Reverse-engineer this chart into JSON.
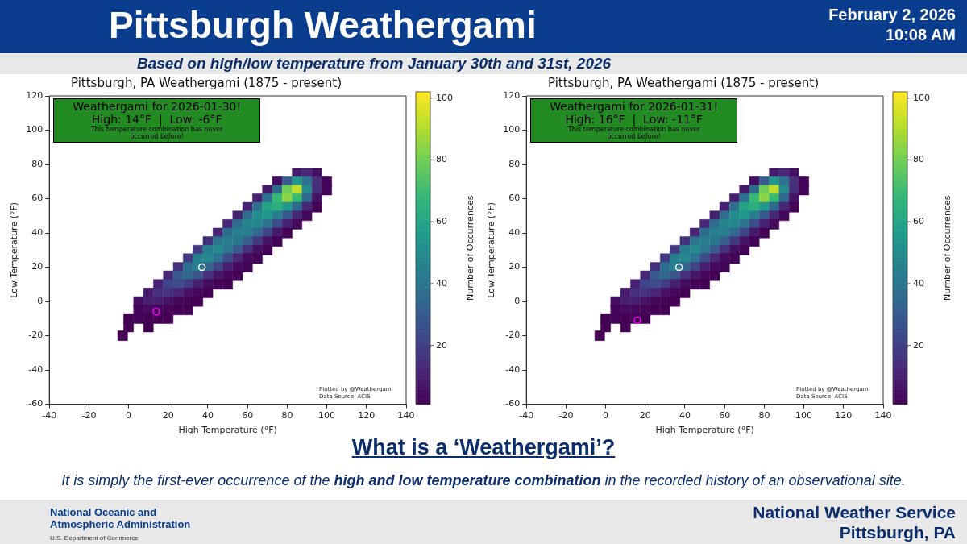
{
  "chart_data": [
    {
      "type": "other",
      "title": "Pittsburgh Weathergami",
      "subtitle": "Based on high/low temperature from January 30th and 31st, 2026",
      "annotations": [
        "February 2, 2026",
        "10:08 AM"
      ]
    },
    {
      "type": "scatter",
      "title": "Pittsburgh, PA Weathergami (1875 - present)",
      "xlabel": "High Temperature (°F)",
      "ylabel": "Low Temperature (°F)",
      "clabel": "Number of Occurrences",
      "xlim": [
        -40,
        140
      ],
      "xticks": [
        -40,
        -20,
        0,
        20,
        40,
        60,
        80,
        100,
        120,
        140
      ],
      "ylim": [
        -60,
        120
      ],
      "yticks": [
        -60,
        -40,
        -20,
        0,
        20,
        40,
        60,
        80,
        100,
        120
      ],
      "clim": [
        1,
        102
      ],
      "cticks": [
        20,
        40,
        60,
        80,
        100
      ],
      "legend": false,
      "annotations": [
        "Weathergami for 2026-01-30!",
        "High: 14°F  |  Low: -6°F",
        "This temperature combination has never occurred before!",
        "Plotted by @Weathergami",
        "Data Source: ACIS"
      ],
      "series": [
        {
          "marker": "square",
          "x": [
            85,
            90,
            95,
            75,
            80,
            85,
            90,
            95,
            100,
            70,
            75,
            80,
            85,
            90,
            95,
            100,
            65,
            70,
            75,
            80,
            85,
            90,
            95,
            60,
            65,
            70,
            75,
            80,
            85,
            90,
            95,
            55,
            60,
            65,
            70,
            75,
            80,
            85,
            90,
            50,
            55,
            60,
            65,
            70,
            75,
            80,
            85,
            45,
            50,
            55,
            60,
            65,
            70,
            75,
            80,
            40,
            45,
            50,
            55,
            60,
            65,
            70,
            75,
            35,
            40,
            45,
            50,
            55,
            60,
            65,
            70,
            30,
            35,
            40,
            45,
            50,
            55,
            60,
            65,
            25,
            30,
            35,
            40,
            45,
            50,
            55,
            60,
            20,
            25,
            30,
            35,
            40,
            45,
            50,
            55,
            15,
            20,
            25,
            30,
            35,
            40,
            45,
            50,
            10,
            15,
            20,
            25,
            30,
            35,
            40,
            5,
            10,
            15,
            20,
            25,
            30,
            35,
            5,
            10,
            15,
            20,
            25,
            30,
            0,
            5,
            10,
            15,
            20,
            0,
            10,
            -3
          ],
          "values": [
            75,
            75,
            75,
            70,
            70,
            70,
            70,
            70,
            70,
            65,
            65,
            65,
            65,
            65,
            65,
            65,
            60,
            60,
            60,
            60,
            60,
            60,
            60,
            55,
            55,
            55,
            55,
            55,
            55,
            55,
            55,
            50,
            50,
            50,
            50,
            50,
            50,
            50,
            50,
            45,
            45,
            45,
            45,
            45,
            45,
            45,
            45,
            40,
            40,
            40,
            40,
            40,
            40,
            40,
            40,
            35,
            35,
            35,
            35,
            35,
            35,
            35,
            35,
            30,
            30,
            30,
            30,
            30,
            30,
            30,
            30,
            25,
            25,
            25,
            25,
            25,
            25,
            25,
            25,
            20,
            20,
            20,
            20,
            20,
            20,
            20,
            20,
            15,
            15,
            15,
            15,
            15,
            15,
            15,
            15,
            10,
            10,
            10,
            10,
            10,
            10,
            10,
            10,
            5,
            5,
            5,
            5,
            5,
            5,
            5,
            0,
            0,
            0,
            0,
            0,
            0,
            0,
            -5,
            -5,
            -5,
            -5,
            -5,
            -5,
            -10,
            -10,
            -10,
            -10,
            -10,
            -15,
            -15,
            -20
          ],
          "cvalues": [
            8,
            12,
            5,
            5,
            30,
            55,
            40,
            15,
            2,
            8,
            35,
            80,
            92,
            50,
            15,
            2,
            10,
            40,
            70,
            85,
            70,
            35,
            6,
            10,
            40,
            60,
            65,
            55,
            35,
            12,
            2,
            10,
            38,
            52,
            55,
            45,
            30,
            12,
            3,
            12,
            38,
            48,
            48,
            40,
            25,
            10,
            3,
            12,
            38,
            45,
            45,
            35,
            22,
            8,
            2,
            15,
            40,
            45,
            42,
            32,
            18,
            6,
            2,
            18,
            45,
            50,
            42,
            30,
            15,
            5,
            2,
            18,
            45,
            50,
            40,
            25,
            12,
            4,
            2,
            15,
            38,
            45,
            35,
            22,
            10,
            4,
            2,
            12,
            30,
            35,
            28,
            15,
            7,
            3,
            1,
            10,
            22,
            25,
            20,
            10,
            5,
            2,
            1,
            8,
            15,
            16,
            12,
            6,
            3,
            1,
            5,
            10,
            9,
            6,
            3,
            2,
            1,
            2,
            4,
            3,
            2,
            1,
            1,
            1,
            2,
            1,
            1,
            1,
            1,
            1,
            1
          ],
          "colors": [
            "#46196a",
            "#482777",
            "#450f61",
            "#450f61",
            "#365b8c",
            "#21968a",
            "#2d728e",
            "#46307c",
            "#440457",
            "#46196a",
            "#31698e",
            "#6ecd59",
            "#bddf2a",
            "#248a8d",
            "#46307c",
            "#440457",
            "#472071",
            "#2d728e",
            "#38b877",
            "#8ad446",
            "#38b877",
            "#31698e",
            "#461264",
            "#472071",
            "#2d728e",
            "#23a286",
            "#2bad7f",
            "#21968a",
            "#31698e",
            "#482777",
            "#440457",
            "#472071",
            "#2f6d8e",
            "#238f8c",
            "#21968a",
            "#287e8e",
            "#365b8c",
            "#482777",
            "#45085a",
            "#482777",
            "#2f6d8e",
            "#25858e",
            "#25858e",
            "#2d728e",
            "#3c4d8a",
            "#472071",
            "#45085a",
            "#482777",
            "#2f6d8e",
            "#287e8e",
            "#287e8e",
            "#31698e",
            "#3f4587",
            "#46196a",
            "#440457",
            "#46307c",
            "#2d728e",
            "#287e8e",
            "#2b778e",
            "#34618d",
            "#433981",
            "#461264",
            "#440457",
            "#433981",
            "#287e8e",
            "#248a8d",
            "#2b778e",
            "#365b8c",
            "#46307c",
            "#450f61",
            "#440457",
            "#433981",
            "#287e8e",
            "#248a8d",
            "#2d728e",
            "#3c4d8a",
            "#482777",
            "#450b5e",
            "#440457",
            "#46307c",
            "#2f6d8e",
            "#287e8e",
            "#31698e",
            "#3f4587",
            "#472071",
            "#450b5e",
            "#440457",
            "#482777",
            "#365b8c",
            "#31698e",
            "#39568b",
            "#46307c",
            "#461667",
            "#45085a",
            "#440154",
            "#472071",
            "#3f4587",
            "#3c4d8a",
            "#413f84",
            "#472071",
            "#450f61",
            "#440457",
            "#440154",
            "#46196a",
            "#46307c",
            "#45337e",
            "#482777",
            "#461264",
            "#45085a",
            "#440154",
            "#450f61",
            "#472071",
            "#471d6e",
            "#461264",
            "#45085a",
            "#440457",
            "#440154",
            "#440457",
            "#450b5e",
            "#45085a",
            "#440457",
            "#440154",
            "#440154",
            "#440154",
            "#440457",
            "#440154",
            "#440154",
            "#440154",
            "#440154",
            "#440154",
            "#440154"
          ]
        },
        {
          "marker": "circle",
          "color": "#ffffff",
          "x": [
            37
          ],
          "values": [
            20
          ]
        },
        {
          "marker": "circle",
          "color": "#ff00ff",
          "x": [
            14
          ],
          "values": [
            -6
          ]
        }
      ]
    },
    {
      "type": "scatter",
      "title": "Pittsburgh, PA Weathergami (1875 - present)",
      "xlabel": "High Temperature (°F)",
      "ylabel": "Low Temperature (°F)",
      "clabel": "Number of Occurrences",
      "xlim": [
        -40,
        140
      ],
      "xticks": [
        -40,
        -20,
        0,
        20,
        40,
        60,
        80,
        100,
        120,
        140
      ],
      "ylim": [
        -60,
        120
      ],
      "yticks": [
        -60,
        -40,
        -20,
        0,
        20,
        40,
        60,
        80,
        100,
        120
      ],
      "clim": [
        1,
        102
      ],
      "cticks": [
        20,
        40,
        60,
        80,
        100
      ],
      "legend": false,
      "annotations": [
        "Weathergami for 2026-01-31!",
        "High: 16°F  |  Low: -11°F",
        "This temperature combination has never occurred before!",
        "Plotted by @Weathergami",
        "Data Source: ACIS"
      ],
      "series": [
        {
          "marker": "square",
          "x": [
            85,
            90,
            95,
            75,
            80,
            85,
            90,
            95,
            100,
            70,
            75,
            80,
            85,
            90,
            95,
            100,
            65,
            70,
            75,
            80,
            85,
            90,
            95,
            60,
            65,
            70,
            75,
            80,
            85,
            90,
            95,
            55,
            60,
            65,
            70,
            75,
            80,
            85,
            90,
            50,
            55,
            60,
            65,
            70,
            75,
            80,
            85,
            45,
            50,
            55,
            60,
            65,
            70,
            75,
            80,
            40,
            45,
            50,
            55,
            60,
            65,
            70,
            75,
            35,
            40,
            45,
            50,
            55,
            60,
            65,
            70,
            30,
            35,
            40,
            45,
            50,
            55,
            60,
            65,
            25,
            30,
            35,
            40,
            45,
            50,
            55,
            60,
            20,
            25,
            30,
            35,
            40,
            45,
            50,
            55,
            15,
            20,
            25,
            30,
            35,
            40,
            45,
            50,
            10,
            15,
            20,
            25,
            30,
            35,
            40,
            5,
            10,
            15,
            20,
            25,
            30,
            35,
            5,
            10,
            15,
            20,
            25,
            30,
            0,
            5,
            10,
            15,
            20,
            0,
            10,
            -3
          ],
          "values": [
            75,
            75,
            75,
            70,
            70,
            70,
            70,
            70,
            70,
            65,
            65,
            65,
            65,
            65,
            65,
            65,
            60,
            60,
            60,
            60,
            60,
            60,
            60,
            55,
            55,
            55,
            55,
            55,
            55,
            55,
            55,
            50,
            50,
            50,
            50,
            50,
            50,
            50,
            50,
            45,
            45,
            45,
            45,
            45,
            45,
            45,
            45,
            40,
            40,
            40,
            40,
            40,
            40,
            40,
            40,
            35,
            35,
            35,
            35,
            35,
            35,
            35,
            35,
            30,
            30,
            30,
            30,
            30,
            30,
            30,
            30,
            25,
            25,
            25,
            25,
            25,
            25,
            25,
            25,
            20,
            20,
            20,
            20,
            20,
            20,
            20,
            20,
            15,
            15,
            15,
            15,
            15,
            15,
            15,
            15,
            10,
            10,
            10,
            10,
            10,
            10,
            10,
            10,
            5,
            5,
            5,
            5,
            5,
            5,
            5,
            0,
            0,
            0,
            0,
            0,
            0,
            0,
            -5,
            -5,
            -5,
            -5,
            -5,
            -5,
            -10,
            -10,
            -10,
            -10,
            -10,
            -15,
            -15,
            -20
          ],
          "cvalues": [
            8,
            12,
            5,
            5,
            30,
            55,
            40,
            15,
            2,
            8,
            35,
            80,
            92,
            50,
            15,
            2,
            10,
            40,
            70,
            85,
            70,
            35,
            6,
            10,
            40,
            60,
            65,
            55,
            35,
            12,
            2,
            10,
            38,
            52,
            55,
            45,
            30,
            12,
            3,
            12,
            38,
            48,
            48,
            40,
            25,
            10,
            3,
            12,
            38,
            45,
            45,
            35,
            22,
            8,
            2,
            15,
            40,
            45,
            42,
            32,
            18,
            6,
            2,
            18,
            45,
            50,
            42,
            30,
            15,
            5,
            2,
            18,
            45,
            50,
            40,
            25,
            12,
            4,
            2,
            15,
            38,
            45,
            35,
            22,
            10,
            4,
            2,
            12,
            30,
            35,
            28,
            15,
            7,
            3,
            1,
            10,
            22,
            25,
            20,
            10,
            5,
            2,
            1,
            8,
            15,
            16,
            12,
            6,
            3,
            1,
            5,
            10,
            9,
            6,
            3,
            2,
            1,
            2,
            4,
            3,
            2,
            1,
            1,
            1,
            2,
            1,
            1,
            1,
            1,
            1,
            1
          ],
          "colors": [
            "#46196a",
            "#482777",
            "#450f61",
            "#450f61",
            "#365b8c",
            "#21968a",
            "#2d728e",
            "#46307c",
            "#440457",
            "#46196a",
            "#31698e",
            "#6ecd59",
            "#bddf2a",
            "#248a8d",
            "#46307c",
            "#440457",
            "#472071",
            "#2d728e",
            "#38b877",
            "#8ad446",
            "#38b877",
            "#31698e",
            "#461264",
            "#472071",
            "#2d728e",
            "#23a286",
            "#2bad7f",
            "#21968a",
            "#31698e",
            "#482777",
            "#440457",
            "#472071",
            "#2f6d8e",
            "#238f8c",
            "#21968a",
            "#287e8e",
            "#365b8c",
            "#482777",
            "#45085a",
            "#482777",
            "#2f6d8e",
            "#25858e",
            "#25858e",
            "#2d728e",
            "#3c4d8a",
            "#472071",
            "#45085a",
            "#482777",
            "#2f6d8e",
            "#287e8e",
            "#287e8e",
            "#31698e",
            "#3f4587",
            "#46196a",
            "#440457",
            "#46307c",
            "#2d728e",
            "#287e8e",
            "#2b778e",
            "#34618d",
            "#433981",
            "#461264",
            "#440457",
            "#433981",
            "#287e8e",
            "#248a8d",
            "#2b778e",
            "#365b8c",
            "#46307c",
            "#450f61",
            "#440457",
            "#433981",
            "#287e8e",
            "#248a8d",
            "#2d728e",
            "#3c4d8a",
            "#482777",
            "#450b5e",
            "#440457",
            "#46307c",
            "#2f6d8e",
            "#287e8e",
            "#31698e",
            "#3f4587",
            "#472071",
            "#450b5e",
            "#440457",
            "#482777",
            "#365b8c",
            "#31698e",
            "#39568b",
            "#46307c",
            "#461667",
            "#45085a",
            "#440154",
            "#472071",
            "#3f4587",
            "#3c4d8a",
            "#413f84",
            "#472071",
            "#450f61",
            "#440457",
            "#440154",
            "#46196a",
            "#46307c",
            "#45337e",
            "#482777",
            "#461264",
            "#45085a",
            "#440154",
            "#450f61",
            "#472071",
            "#471d6e",
            "#461264",
            "#45085a",
            "#440457",
            "#440154",
            "#440457",
            "#450b5e",
            "#45085a",
            "#440457",
            "#440154",
            "#440154",
            "#440154",
            "#440457",
            "#440154",
            "#440154",
            "#440154",
            "#440154",
            "#440154",
            "#440154"
          ]
        },
        {
          "marker": "circle",
          "color": "#ffffff",
          "x": [
            37
          ],
          "values": [
            20
          ]
        },
        {
          "marker": "circle",
          "color": "#ff00ff",
          "x": [
            16
          ],
          "values": [
            -11
          ]
        }
      ]
    },
    {
      "type": "other",
      "title": "What is a ‘Weathergami’?",
      "annotations": [
        "It is simply the first-ever occurrence of the ",
        "high and low temperature combination",
        " in the recorded history of an observational site.",
        "National Oceanic and Atmospheric Administration",
        "U.S. Department of Commerce",
        "National Weather Service",
        "Pittsburgh, PA"
      ]
    }
  ]
}
